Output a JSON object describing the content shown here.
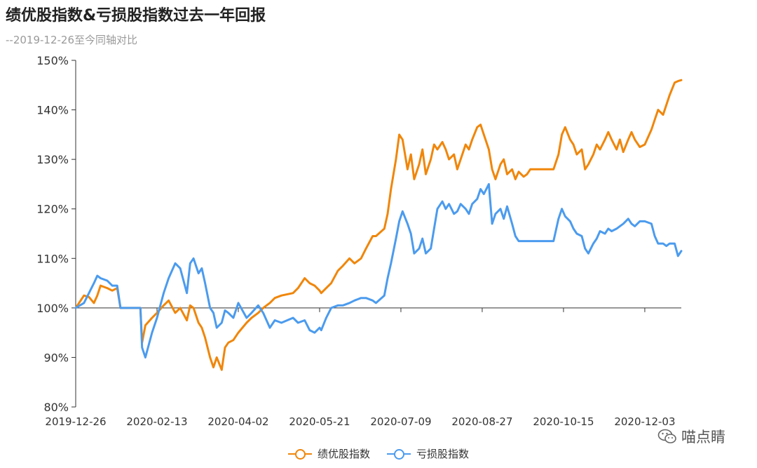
{
  "title": "绩优股指数&亏损股指数过去一年回报",
  "subtitle": "--2019-12-26至今同轴对比",
  "watermark": "喵点睛",
  "colors": {
    "axis": "#333333",
    "series1": "#F0860A",
    "series2": "#4B9BEE",
    "tick_text": "#333333"
  },
  "chart_data": {
    "type": "line",
    "title": "绩优股指数&亏损股指数过去一年回报",
    "subtitle": "--2019-12-26至今同轴对比",
    "xlabel": "",
    "ylabel": "",
    "y_unit": "%",
    "ylim": [
      80,
      150
    ],
    "yticks": [
      80,
      90,
      100,
      110,
      120,
      130,
      140,
      150
    ],
    "ytick_labels": [
      "80%",
      "90%",
      "100%",
      "110%",
      "120%",
      "130%",
      "140%",
      "150%"
    ],
    "xtick_labels": [
      "2019-12-26",
      "2020-02-13",
      "2020-04-02",
      "2020-05-21",
      "2020-07-09",
      "2020-08-27",
      "2020-10-15",
      "2020-12-03"
    ],
    "x_range": [
      "2019-12-26",
      "2020-12-25"
    ],
    "baseline": 100,
    "legend_position": "bottom-center",
    "grid": false,
    "series": [
      {
        "name": "绩优股指数",
        "color": "#F0860A",
        "points": [
          [
            "2019-12-26",
            100
          ],
          [
            "2019-12-31",
            102.5
          ],
          [
            "2020-01-03",
            102.2
          ],
          [
            "2020-01-06",
            101
          ],
          [
            "2020-01-08",
            102.5
          ],
          [
            "2020-01-10",
            104.5
          ],
          [
            "2020-01-14",
            104
          ],
          [
            "2020-01-17",
            103.5
          ],
          [
            "2020-01-20",
            104
          ],
          [
            "2020-01-22",
            100
          ],
          [
            "2020-02-03",
            100
          ],
          [
            "2020-02-04",
            93
          ],
          [
            "2020-02-06",
            96.5
          ],
          [
            "2020-02-10",
            98
          ],
          [
            "2020-02-13",
            99
          ],
          [
            "2020-02-17",
            100.5
          ],
          [
            "2020-02-20",
            101.5
          ],
          [
            "2020-02-24",
            99
          ],
          [
            "2020-02-27",
            100
          ],
          [
            "2020-03-02",
            97.5
          ],
          [
            "2020-03-04",
            100.5
          ],
          [
            "2020-03-06",
            100
          ],
          [
            "2020-03-09",
            97
          ],
          [
            "2020-03-11",
            96
          ],
          [
            "2020-03-13",
            94
          ],
          [
            "2020-03-16",
            90
          ],
          [
            "2020-03-18",
            88
          ],
          [
            "2020-03-20",
            90
          ],
          [
            "2020-03-23",
            87.5
          ],
          [
            "2020-03-25",
            92
          ],
          [
            "2020-03-27",
            93
          ],
          [
            "2020-03-30",
            93.5
          ],
          [
            "2020-04-02",
            95
          ],
          [
            "2020-04-07",
            97
          ],
          [
            "2020-04-10",
            98
          ],
          [
            "2020-04-14",
            99
          ],
          [
            "2020-04-17",
            100
          ],
          [
            "2020-04-21",
            101
          ],
          [
            "2020-04-24",
            102
          ],
          [
            "2020-04-28",
            102.5
          ],
          [
            "2020-05-05",
            103
          ],
          [
            "2020-05-08",
            104
          ],
          [
            "2020-05-12",
            106
          ],
          [
            "2020-05-15",
            105
          ],
          [
            "2020-05-18",
            104.5
          ],
          [
            "2020-05-21",
            103.5
          ],
          [
            "2020-05-22",
            103
          ],
          [
            "2020-05-25",
            104
          ],
          [
            "2020-05-28",
            105
          ],
          [
            "2020-06-01",
            107.5
          ],
          [
            "2020-06-04",
            108.5
          ],
          [
            "2020-06-08",
            110
          ],
          [
            "2020-06-11",
            109
          ],
          [
            "2020-06-15",
            110
          ],
          [
            "2020-06-18",
            112
          ],
          [
            "2020-06-22",
            114.5
          ],
          [
            "2020-06-24",
            114.5
          ],
          [
            "2020-06-29",
            116
          ],
          [
            "2020-07-01",
            119
          ],
          [
            "2020-07-03",
            124
          ],
          [
            "2020-07-06",
            130
          ],
          [
            "2020-07-08",
            135
          ],
          [
            "2020-07-10",
            134
          ],
          [
            "2020-07-13",
            128
          ],
          [
            "2020-07-15",
            131
          ],
          [
            "2020-07-17",
            126
          ],
          [
            "2020-07-20",
            129
          ],
          [
            "2020-07-22",
            132
          ],
          [
            "2020-07-24",
            127
          ],
          [
            "2020-07-27",
            130
          ],
          [
            "2020-07-29",
            133
          ],
          [
            "2020-07-31",
            132
          ],
          [
            "2020-08-03",
            133.5
          ],
          [
            "2020-08-05",
            132
          ],
          [
            "2020-08-07",
            130
          ],
          [
            "2020-08-10",
            131
          ],
          [
            "2020-08-12",
            128
          ],
          [
            "2020-08-14",
            130
          ],
          [
            "2020-08-17",
            133
          ],
          [
            "2020-08-19",
            132
          ],
          [
            "2020-08-21",
            134
          ],
          [
            "2020-08-24",
            136.5
          ],
          [
            "2020-08-26",
            137
          ],
          [
            "2020-08-28",
            135
          ],
          [
            "2020-08-31",
            132
          ],
          [
            "2020-09-02",
            128
          ],
          [
            "2020-09-04",
            126
          ],
          [
            "2020-09-07",
            129
          ],
          [
            "2020-09-09",
            130
          ],
          [
            "2020-09-11",
            127
          ],
          [
            "2020-09-14",
            128
          ],
          [
            "2020-09-16",
            126
          ],
          [
            "2020-09-18",
            127.5
          ],
          [
            "2020-09-21",
            126.5
          ],
          [
            "2020-09-23",
            127
          ],
          [
            "2020-09-25",
            128
          ],
          [
            "2020-10-09",
            128
          ],
          [
            "2020-10-12",
            131
          ],
          [
            "2020-10-14",
            135
          ],
          [
            "2020-10-16",
            136.5
          ],
          [
            "2020-10-19",
            134
          ],
          [
            "2020-10-21",
            133
          ],
          [
            "2020-10-23",
            131
          ],
          [
            "2020-10-26",
            132
          ],
          [
            "2020-10-28",
            128
          ],
          [
            "2020-10-30",
            129
          ],
          [
            "2020-11-02",
            131
          ],
          [
            "2020-11-04",
            133
          ],
          [
            "2020-11-06",
            132
          ],
          [
            "2020-11-09",
            134
          ],
          [
            "2020-11-11",
            135.5
          ],
          [
            "2020-11-13",
            134
          ],
          [
            "2020-11-16",
            132
          ],
          [
            "2020-11-18",
            134
          ],
          [
            "2020-11-20",
            131.5
          ],
          [
            "2020-11-23",
            134
          ],
          [
            "2020-11-25",
            135.5
          ],
          [
            "2020-11-27",
            134
          ],
          [
            "2020-11-30",
            132.5
          ],
          [
            "2020-12-03",
            133
          ],
          [
            "2020-12-07",
            136
          ],
          [
            "2020-12-09",
            138
          ],
          [
            "2020-12-11",
            140
          ],
          [
            "2020-12-14",
            139
          ],
          [
            "2020-12-16",
            141
          ],
          [
            "2020-12-18",
            143
          ],
          [
            "2020-12-21",
            145.5
          ],
          [
            "2020-12-23",
            145.8
          ],
          [
            "2020-12-25",
            146
          ]
        ]
      },
      {
        "name": "亏损股指数",
        "color": "#4B9BEE",
        "points": [
          [
            "2019-12-26",
            100
          ],
          [
            "2019-12-31",
            101
          ],
          [
            "2020-01-03",
            103
          ],
          [
            "2020-01-06",
            105
          ],
          [
            "2020-01-08",
            106.5
          ],
          [
            "2020-01-10",
            106
          ],
          [
            "2020-01-14",
            105.5
          ],
          [
            "2020-01-17",
            104.5
          ],
          [
            "2020-01-20",
            104.5
          ],
          [
            "2020-01-22",
            100
          ],
          [
            "2020-02-03",
            100
          ],
          [
            "2020-02-04",
            92
          ],
          [
            "2020-02-06",
            90
          ],
          [
            "2020-02-10",
            95
          ],
          [
            "2020-02-13",
            98
          ],
          [
            "2020-02-17",
            103
          ],
          [
            "2020-02-20",
            106
          ],
          [
            "2020-02-24",
            109
          ],
          [
            "2020-02-27",
            108
          ],
          [
            "2020-03-02",
            103
          ],
          [
            "2020-03-04",
            109
          ],
          [
            "2020-03-06",
            110
          ],
          [
            "2020-03-09",
            107
          ],
          [
            "2020-03-11",
            108
          ],
          [
            "2020-03-13",
            105
          ],
          [
            "2020-03-16",
            100
          ],
          [
            "2020-03-18",
            99
          ],
          [
            "2020-03-20",
            96
          ],
          [
            "2020-03-23",
            97
          ],
          [
            "2020-03-25",
            99.5
          ],
          [
            "2020-03-27",
            99
          ],
          [
            "2020-03-30",
            98
          ],
          [
            "2020-04-02",
            101
          ],
          [
            "2020-04-07",
            98
          ],
          [
            "2020-04-10",
            99
          ],
          [
            "2020-04-14",
            100.5
          ],
          [
            "2020-04-17",
            99
          ],
          [
            "2020-04-21",
            96
          ],
          [
            "2020-04-24",
            97.5
          ],
          [
            "2020-04-28",
            97
          ],
          [
            "2020-05-05",
            98
          ],
          [
            "2020-05-08",
            97
          ],
          [
            "2020-05-12",
            97.5
          ],
          [
            "2020-05-15",
            95.5
          ],
          [
            "2020-05-18",
            95
          ],
          [
            "2020-05-21",
            96
          ],
          [
            "2020-05-22",
            95.5
          ],
          [
            "2020-05-25",
            98
          ],
          [
            "2020-05-28",
            100
          ],
          [
            "2020-06-01",
            100.5
          ],
          [
            "2020-06-04",
            100.5
          ],
          [
            "2020-06-08",
            101
          ],
          [
            "2020-06-11",
            101.5
          ],
          [
            "2020-06-15",
            102
          ],
          [
            "2020-06-18",
            102
          ],
          [
            "2020-06-22",
            101.5
          ],
          [
            "2020-06-24",
            101
          ],
          [
            "2020-06-29",
            102.5
          ],
          [
            "2020-07-01",
            106
          ],
          [
            "2020-07-03",
            109
          ],
          [
            "2020-07-06",
            114
          ],
          [
            "2020-07-08",
            117.5
          ],
          [
            "2020-07-10",
            119.5
          ],
          [
            "2020-07-13",
            117
          ],
          [
            "2020-07-15",
            115
          ],
          [
            "2020-07-17",
            111
          ],
          [
            "2020-07-20",
            112
          ],
          [
            "2020-07-22",
            114
          ],
          [
            "2020-07-24",
            111
          ],
          [
            "2020-07-27",
            112
          ],
          [
            "2020-07-29",
            116
          ],
          [
            "2020-07-31",
            120
          ],
          [
            "2020-08-03",
            121.5
          ],
          [
            "2020-08-05",
            120
          ],
          [
            "2020-08-07",
            121
          ],
          [
            "2020-08-10",
            119
          ],
          [
            "2020-08-12",
            119.5
          ],
          [
            "2020-08-14",
            121
          ],
          [
            "2020-08-17",
            120
          ],
          [
            "2020-08-19",
            119
          ],
          [
            "2020-08-21",
            121
          ],
          [
            "2020-08-24",
            122
          ],
          [
            "2020-08-26",
            124
          ],
          [
            "2020-08-28",
            123
          ],
          [
            "2020-08-31",
            125
          ],
          [
            "2020-09-02",
            117
          ],
          [
            "2020-09-04",
            119
          ],
          [
            "2020-09-07",
            120
          ],
          [
            "2020-09-09",
            118
          ],
          [
            "2020-09-11",
            120.5
          ],
          [
            "2020-09-14",
            117
          ],
          [
            "2020-09-16",
            114.5
          ],
          [
            "2020-09-18",
            113.5
          ],
          [
            "2020-09-21",
            113.5
          ],
          [
            "2020-09-23",
            113.5
          ],
          [
            "2020-09-25",
            113.5
          ],
          [
            "2020-10-09",
            113.5
          ],
          [
            "2020-10-12",
            118
          ],
          [
            "2020-10-14",
            120
          ],
          [
            "2020-10-16",
            118.5
          ],
          [
            "2020-10-19",
            117.5
          ],
          [
            "2020-10-21",
            116
          ],
          [
            "2020-10-23",
            115
          ],
          [
            "2020-10-26",
            114.5
          ],
          [
            "2020-10-28",
            112
          ],
          [
            "2020-10-30",
            111
          ],
          [
            "2020-11-02",
            113
          ],
          [
            "2020-11-04",
            114
          ],
          [
            "2020-11-06",
            115.5
          ],
          [
            "2020-11-09",
            115
          ],
          [
            "2020-11-11",
            116
          ],
          [
            "2020-11-13",
            115.5
          ],
          [
            "2020-11-16",
            116
          ],
          [
            "2020-11-18",
            116.5
          ],
          [
            "2020-11-20",
            117
          ],
          [
            "2020-11-23",
            118
          ],
          [
            "2020-11-25",
            117
          ],
          [
            "2020-11-27",
            116.5
          ],
          [
            "2020-11-30",
            117.5
          ],
          [
            "2020-12-03",
            117.5
          ],
          [
            "2020-12-07",
            117
          ],
          [
            "2020-12-09",
            114.5
          ],
          [
            "2020-12-11",
            113
          ],
          [
            "2020-12-14",
            113
          ],
          [
            "2020-12-16",
            112.5
          ],
          [
            "2020-12-18",
            113
          ],
          [
            "2020-12-21",
            113
          ],
          [
            "2020-12-23",
            110.5
          ],
          [
            "2020-12-25",
            111.5
          ]
        ]
      }
    ]
  }
}
